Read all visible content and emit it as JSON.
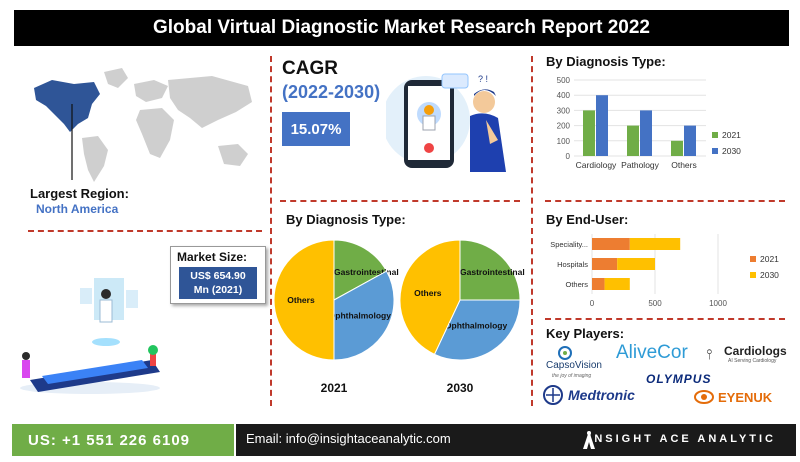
{
  "title": "Global Virtual Diagnostic Market Research Report 2022",
  "largest_region": {
    "label": "Largest Region:",
    "value": "North America"
  },
  "market_size": {
    "label": "Market Size:",
    "line1": "US$ 654.90",
    "line2": "Mn (2021)"
  },
  "cagr": {
    "label": "CAGR",
    "years": "(2022-2030)",
    "value": "15.07%"
  },
  "bar_section_title": "By Diagnosis Type:",
  "pie_section_title": "By Diagnosis Type:",
  "enduser_section_title": "By End-User:",
  "key_players_title": "Key Players:",
  "key_players": [
    "CapsoVision",
    "AliveCor",
    "Cardiologs",
    "OLYMPUS",
    "Medtronic",
    "EYENUK"
  ],
  "key_player_taglines": {
    "cardiologs": "AI Serving Cardiology",
    "capsovision": "the joy of imaging"
  },
  "footer": {
    "phone": "US: +1 551 226 6109",
    "email": "Email: info@insightaceanalytic.com",
    "brand": "INSIGHT ACE ANALYTIC"
  },
  "colors": {
    "blue": "#4472c4",
    "green": "#70ad47",
    "orange": "#ed7d31",
    "gold": "#ffc000",
    "pie_blue": "#5b9bd5"
  },
  "chart_data": [
    {
      "type": "bar",
      "title": "By Diagnosis Type:",
      "categories": [
        "Cardiology",
        "Pathology",
        "Others"
      ],
      "series": [
        {
          "name": "2021",
          "values": [
            300,
            200,
            100
          ]
        },
        {
          "name": "2030",
          "values": [
            400,
            300,
            200
          ]
        }
      ],
      "y_ticks": [
        0,
        100,
        200,
        300,
        400,
        500
      ],
      "ylim": [
        0,
        500
      ],
      "legend": "right"
    },
    {
      "type": "pie",
      "caption": "2021",
      "slices": [
        {
          "label": "Gastrointestinal",
          "value": 17
        },
        {
          "label": "Ophthalmology",
          "value": 33
        },
        {
          "label": "Others",
          "value": 50
        }
      ]
    },
    {
      "type": "pie",
      "caption": "2030",
      "slices": [
        {
          "label": "Gastrointestinal",
          "value": 25
        },
        {
          "label": "Ophthalmology",
          "value": 32
        },
        {
          "label": "Others",
          "value": 43
        }
      ]
    },
    {
      "type": "bar",
      "orientation": "horizontal",
      "stacked": true,
      "title": "By End-User:",
      "categories": [
        "Speciality...",
        "Hospitals",
        "Others"
      ],
      "series": [
        {
          "name": "2021",
          "values": [
            300,
            200,
            100
          ]
        },
        {
          "name": "2030",
          "values": [
            400,
            300,
            200
          ]
        }
      ],
      "x_ticks": [
        0,
        500,
        1000
      ],
      "xlim": [
        0,
        1000
      ],
      "legend": "right"
    }
  ]
}
